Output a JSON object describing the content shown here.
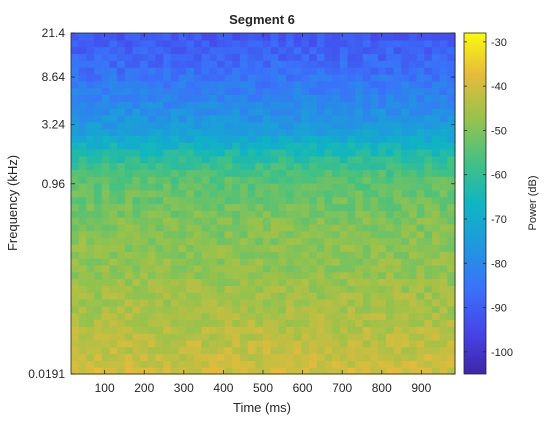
{
  "chart_data": {
    "type": "heatmap",
    "title": "Segment 6",
    "xlabel": "Time (ms)",
    "ylabel": "Frequency (kHz)",
    "xlim": [
      15,
      985
    ],
    "x_ticks": [
      100,
      200,
      300,
      400,
      500,
      600,
      700,
      800,
      900
    ],
    "x_tick_labels": [
      "100",
      "200",
      "300",
      "400",
      "500",
      "600",
      "700",
      "800",
      "900"
    ],
    "y_scale": "log",
    "ylim": [
      0.0191,
      21.4
    ],
    "y_ticks": [
      0.0191,
      0.96,
      3.24,
      8.64,
      21.4
    ],
    "y_tick_labels": [
      "0.0191",
      "0.96",
      "3.24",
      "8.64",
      "21.4"
    ],
    "colorbar": {
      "label": "Power (dB)",
      "range": [
        -105,
        -28
      ],
      "ticks": [
        -30,
        -40,
        -50,
        -60,
        -70,
        -80,
        -90,
        -100
      ],
      "tick_labels": [
        "-30",
        "-40",
        "-50",
        "-60",
        "-70",
        "-80",
        "-90",
        "-100"
      ],
      "colormap": "parula"
    },
    "grid": false,
    "cells": {
      "time_bins": 50,
      "freq_bins": 50,
      "power_db_profile": [
        {
          "position_from_bottom": 0.0,
          "power_db": -40
        },
        {
          "position_from_bottom": 0.06,
          "power_db": -42
        },
        {
          "position_from_bottom": 0.18,
          "power_db": -45
        },
        {
          "position_from_bottom": 0.32,
          "power_db": -48
        },
        {
          "position_from_bottom": 0.45,
          "power_db": -50
        },
        {
          "position_from_bottom": 0.58,
          "power_db": -55
        },
        {
          "position_from_bottom": 0.64,
          "power_db": -62
        },
        {
          "position_from_bottom": 0.72,
          "power_db": -75
        },
        {
          "position_from_bottom": 0.82,
          "power_db": -82
        },
        {
          "position_from_bottom": 0.92,
          "power_db": -88
        },
        {
          "position_from_bottom": 1.0,
          "power_db": -92
        }
      ]
    }
  }
}
